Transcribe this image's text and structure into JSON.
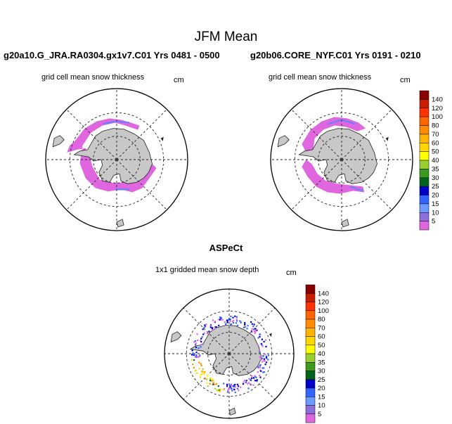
{
  "figure": {
    "title": "JFM Mean",
    "unit": "cm"
  },
  "panels": [
    {
      "id": "left",
      "title": "g20a10.G_JRA.RA0304.gx1v7.C01  Yrs 0481 - 0500",
      "subtitle": "grid cell mean snow thickness"
    },
    {
      "id": "right",
      "title": "g20b06.CORE_NYF.C01  Yrs 0191 - 0210",
      "subtitle": "grid cell mean snow thickness"
    },
    {
      "id": "bottom",
      "title": "ASPeCt",
      "subtitle": "1x1 gridded mean snow depth"
    }
  ],
  "colorbar": {
    "labels": [
      "140",
      "120",
      "100",
      "80",
      "70",
      "60",
      "50",
      "40",
      "35",
      "30",
      "25",
      "20",
      "15",
      "10",
      "5"
    ],
    "colors": [
      "#8b0000",
      "#c81e00",
      "#ff3200",
      "#ff6600",
      "#ff8c00",
      "#ffb400",
      "#ffd700",
      "#ffff00",
      "#9acd32",
      "#3c9a1e",
      "#00641e",
      "#0000c8",
      "#3264ff",
      "#6b9bff",
      "#8c6fdc",
      "#e066e0"
    ]
  },
  "map": {
    "land_color": "#c8c8c8",
    "ice_color": "#e066e0",
    "ice_edge_color": "#6b7fff"
  }
}
